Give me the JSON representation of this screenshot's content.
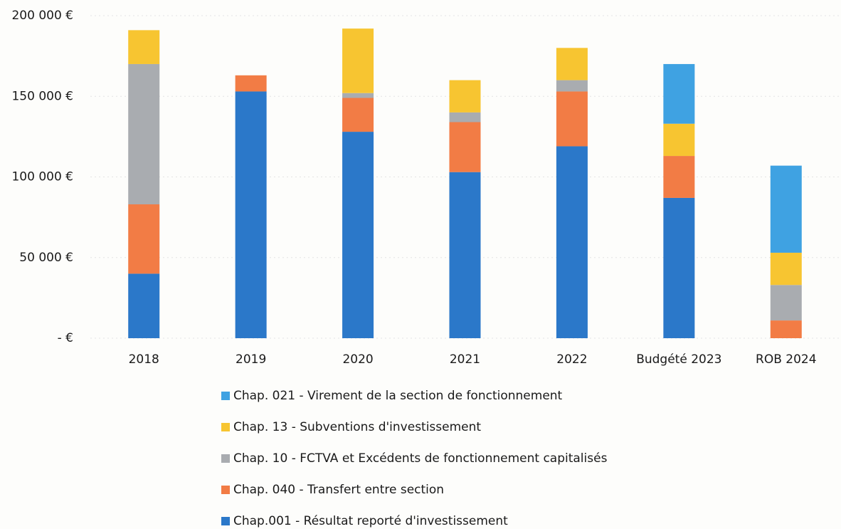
{
  "chart_data": {
    "type": "stacked_bar",
    "categories": [
      "2018",
      "2019",
      "2020",
      "2021",
      "2022",
      "Budgété 2023",
      "ROB 2024"
    ],
    "series": [
      {
        "name": "Chap.001 - Résultat reporté d'investissement",
        "color": "#2b78c9",
        "values": [
          40000,
          153000,
          128000,
          103000,
          119000,
          87000,
          0
        ]
      },
      {
        "name": "Chap. 040 - Transfert entre section",
        "color": "#f27c45",
        "values": [
          43000,
          10000,
          21000,
          31000,
          34000,
          26000,
          11000
        ]
      },
      {
        "name": "Chap. 10 - FCTVA et Excédents de fonctionnement capitalisés",
        "color": "#a9acb0",
        "values": [
          87000,
          0,
          3000,
          6000,
          7000,
          0,
          22000
        ]
      },
      {
        "name": "Chap. 13 - Subventions d'investissement",
        "color": "#f7c531",
        "values": [
          21000,
          0,
          40000,
          20000,
          20000,
          20000,
          20000
        ]
      },
      {
        "name": "Chap. 021 - Virement de la section de fonctionnement",
        "color": "#3fa2e2",
        "values": [
          0,
          0,
          0,
          0,
          0,
          37000,
          54000
        ]
      }
    ],
    "ylim": [
      0,
      200000
    ],
    "yticks": [
      {
        "value": 0,
        "label": "-   €"
      },
      {
        "value": 50000,
        "label": "50 000 €"
      },
      {
        "value": 100000,
        "label": "100 000 €"
      },
      {
        "value": 150000,
        "label": "150 000 €"
      },
      {
        "value": 200000,
        "label": "200 000 €"
      }
    ],
    "grid": true
  }
}
